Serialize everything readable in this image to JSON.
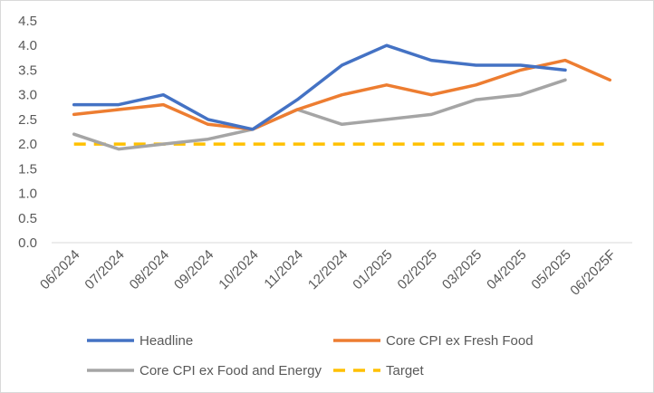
{
  "chart_data": {
    "type": "line",
    "title": "",
    "xlabel": "",
    "ylabel": "",
    "categories": [
      "06/2024",
      "07/2024",
      "08/2024",
      "09/2024",
      "10/2024",
      "11/2024",
      "12/2024",
      "01/2025",
      "02/2025",
      "03/2025",
      "04/2025",
      "05/2025",
      "06/2025F"
    ],
    "ylim": [
      0,
      4.5
    ],
    "yticks": [
      "0.0",
      "0.5",
      "1.0",
      "1.5",
      "2.0",
      "2.5",
      "3.0",
      "3.5",
      "4.0",
      "4.5"
    ],
    "grid": false,
    "legend": "bottom",
    "series": [
      {
        "name": "Headline",
        "color": "#4472C4",
        "dash": "solid",
        "values": [
          2.8,
          2.8,
          3.0,
          2.5,
          2.3,
          2.9,
          3.6,
          4.0,
          3.7,
          3.6,
          3.6,
          3.5,
          null
        ]
      },
      {
        "name": "Core CPI ex Fresh Food",
        "color": "#ED7D31",
        "dash": "solid",
        "values": [
          2.6,
          2.7,
          2.8,
          2.4,
          2.3,
          2.7,
          3.0,
          3.2,
          3.0,
          3.2,
          3.5,
          3.7,
          3.3
        ]
      },
      {
        "name": "Core CPI ex Food and Energy",
        "color": "#A5A5A5",
        "dash": "solid",
        "values": [
          2.2,
          1.9,
          2.0,
          2.1,
          2.3,
          2.7,
          2.4,
          2.5,
          2.6,
          2.9,
          3.0,
          3.3,
          null
        ]
      },
      {
        "name": "Target",
        "color": "#FFC000",
        "dash": "dashed",
        "values": [
          2.0,
          2.0,
          2.0,
          2.0,
          2.0,
          2.0,
          2.0,
          2.0,
          2.0,
          2.0,
          2.0,
          2.0,
          2.0
        ]
      }
    ]
  }
}
